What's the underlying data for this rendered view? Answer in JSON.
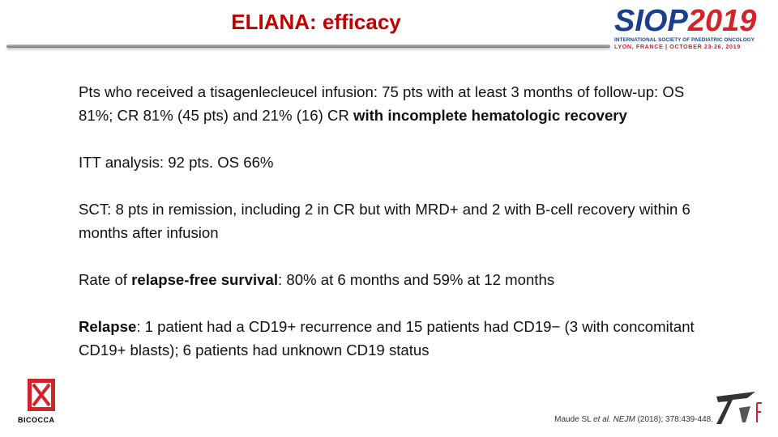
{
  "title": "ELIANA: efficacy",
  "logo": {
    "siop": "SIOP",
    "year": "2019",
    "society": "INTERNATIONAL SOCIETY OF PAEDIATRIC ONCOLOGY",
    "place": "LYON, FRANCE | OCTOBER 23-26, 2019"
  },
  "university": "BICOCCA",
  "paragraphs": [
    [
      {
        "text": "Pts who received a tisagenlecleucel infusion: 75 pts with at least 3 months of follow-up: OS 81%; CR 81% (45 pts) and 21% (16) CR "
      },
      {
        "text": "with incomplete hematologic recovery",
        "bold": true
      }
    ],
    [
      {
        "text": "ITT analysis: 92 pts. OS 66%"
      }
    ],
    [
      {
        "text": "SCT: 8 pts in remission, including 2 in CR but with MRD+ and 2 with B-cell recovery within 6 months after infusion"
      }
    ],
    [
      {
        "text": "Rate of "
      },
      {
        "text": "relapse-free survival",
        "bold": true
      },
      {
        "text": ":  80% at 6 months and 59% at 12 months"
      }
    ],
    [
      {
        "text": "Relapse",
        "bold": true
      },
      {
        "text": ": 1 patient had a CD19+ recurrence and 15 patients had CD19− (3 with concomitant CD19+ blasts); 6 patients had unknown CD19 status"
      }
    ]
  ],
  "citation": [
    {
      "text": "Maude SL "
    },
    {
      "text": "et al.",
      "italic": true
    },
    {
      "text": " "
    },
    {
      "text": "NEJM",
      "italic": true
    },
    {
      "text": " (2018); 378:439-448."
    }
  ]
}
